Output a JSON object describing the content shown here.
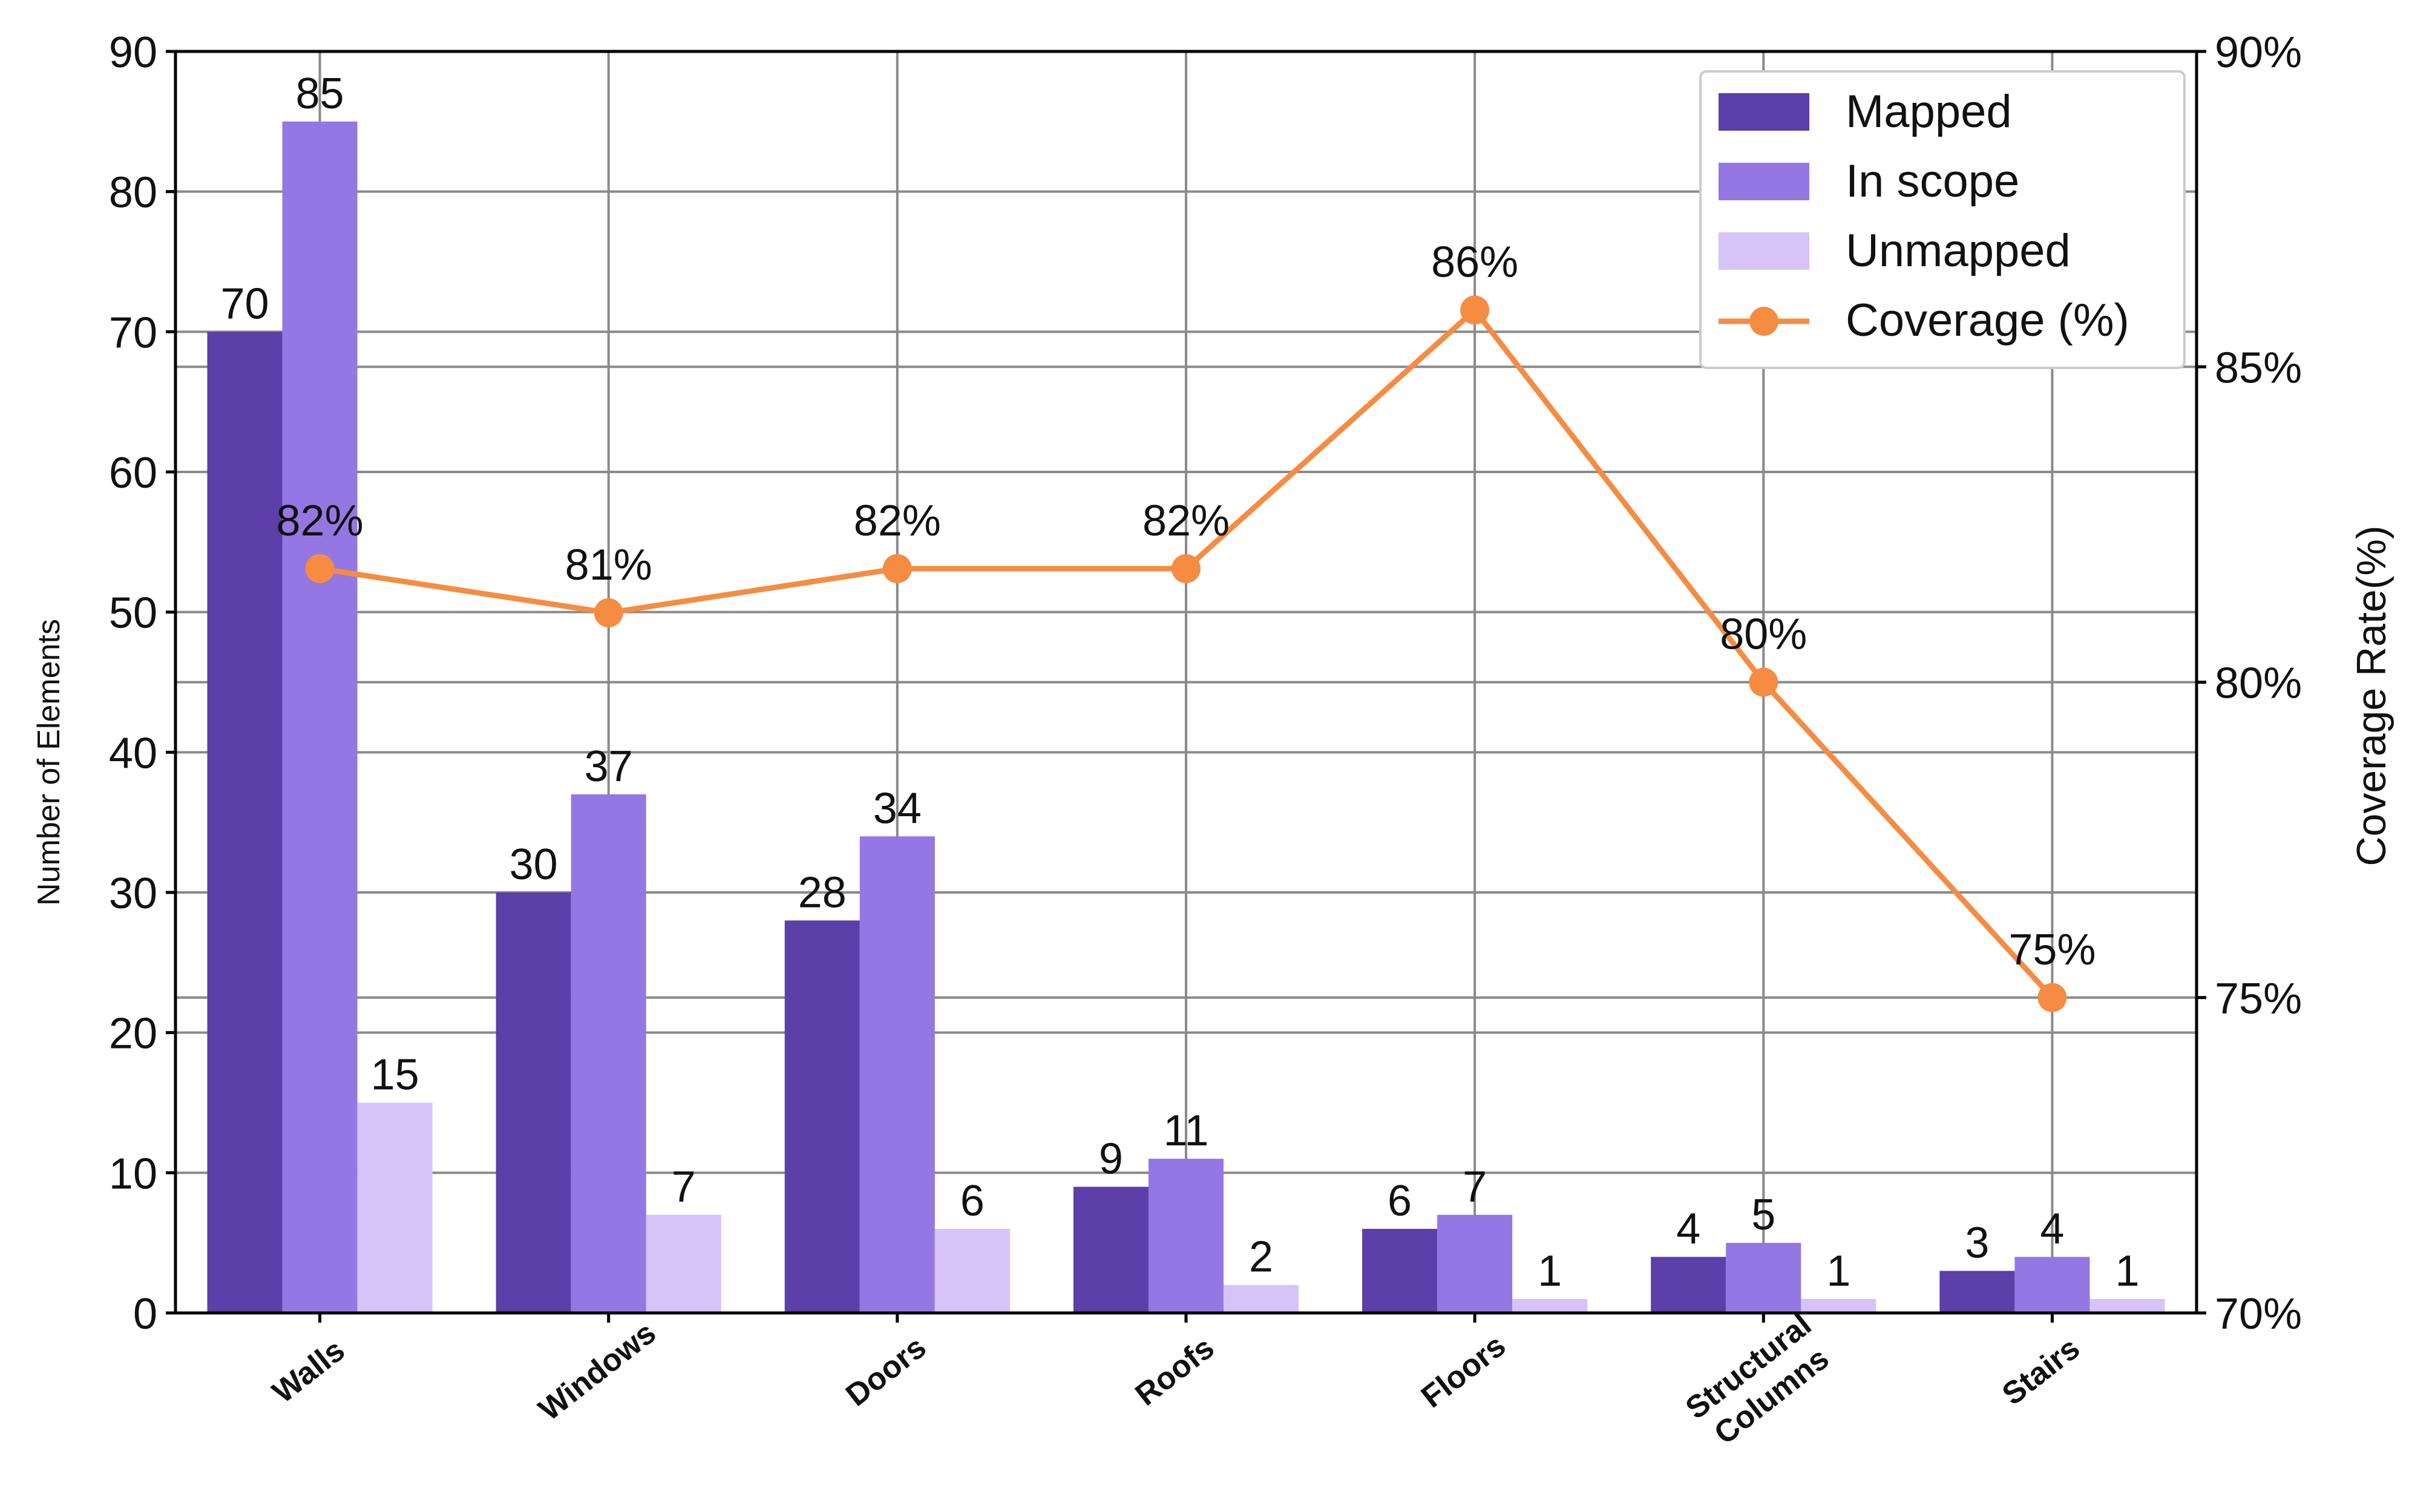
{
  "chart_data": {
    "type": "bar",
    "categories": [
      "Walls",
      "Windows",
      "Doors",
      "Roofs",
      "Floors",
      "Structural Columns",
      "Stairs"
    ],
    "category_lines": [
      [
        "Walls"
      ],
      [
        "Windows"
      ],
      [
        "Doors"
      ],
      [
        "Roofs"
      ],
      [
        "Floors"
      ],
      [
        "Structural",
        "Columns"
      ],
      [
        "Stairs"
      ]
    ],
    "series": [
      {
        "name": "Mapped",
        "values": [
          70,
          30,
          28,
          9,
          6,
          4,
          3
        ],
        "color": "#5c3fa8"
      },
      {
        "name": "In scope",
        "values": [
          85,
          37,
          34,
          11,
          7,
          5,
          4
        ],
        "color": "#9577e3"
      },
      {
        "name": "Unmapped",
        "values": [
          15,
          7,
          6,
          2,
          1,
          1,
          1
        ],
        "color": "#d6c3f7"
      }
    ],
    "line_series": {
      "name": "Coverage (%)",
      "values": [
        82,
        81,
        82,
        82,
        86,
        80,
        75
      ],
      "plot_values": [
        81.8,
        81.1,
        81.8,
        81.8,
        85.9,
        80.0,
        75.0
      ],
      "color": "#f58c42"
    },
    "ylabel": "Number of Elements",
    "y2label": "Coverage Rate(%)",
    "ylim": [
      0,
      90
    ],
    "y2lim": [
      70,
      90
    ],
    "yticks": [
      0,
      10,
      20,
      30,
      40,
      50,
      60,
      70,
      80,
      90
    ],
    "y2ticks": [
      "70%",
      "75%",
      "80%",
      "85%",
      "90%"
    ],
    "y2tick_values": [
      70,
      75,
      80,
      85,
      90
    ],
    "grid": true,
    "legend_position": "top-right"
  }
}
